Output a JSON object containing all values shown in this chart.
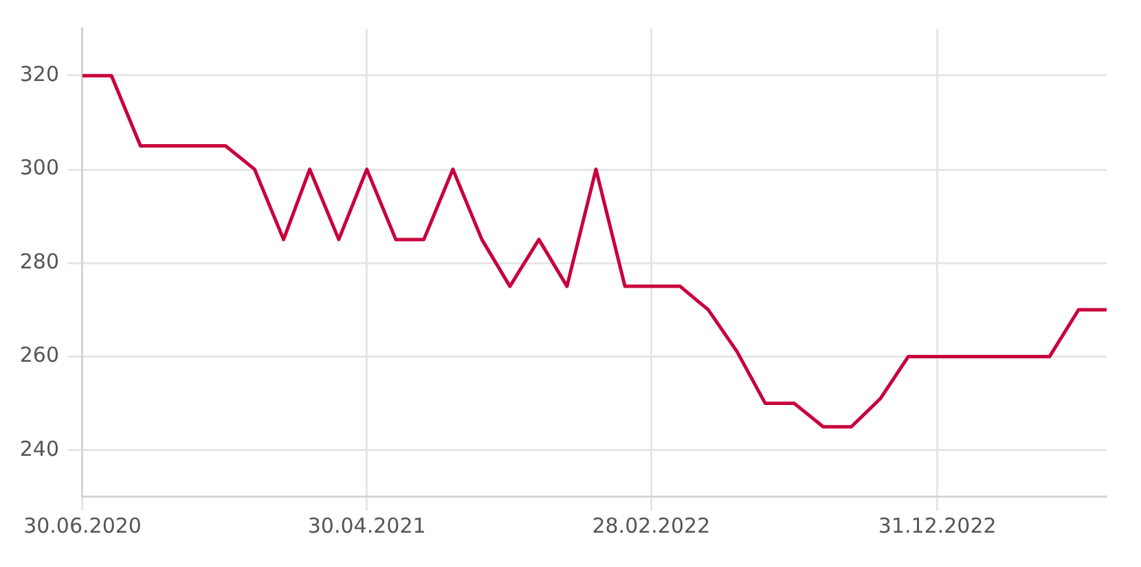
{
  "chart_data": {
    "type": "line",
    "x": [
      "2020-06-30",
      "2020-07-31",
      "2020-08-31",
      "2020-09-30",
      "2020-10-31",
      "2020-11-30",
      "2020-12-31",
      "2021-01-31",
      "2021-02-28",
      "2021-03-31",
      "2021-04-30",
      "2021-05-31",
      "2021-06-30",
      "2021-07-31",
      "2021-08-31",
      "2021-09-30",
      "2021-10-31",
      "2021-11-30",
      "2021-12-31",
      "2022-01-31",
      "2022-02-28",
      "2022-03-31",
      "2022-04-30",
      "2022-05-31",
      "2022-06-30",
      "2022-07-31",
      "2022-08-31",
      "2022-09-30",
      "2022-10-31",
      "2022-11-30",
      "2022-12-31",
      "2023-01-31",
      "2023-02-28",
      "2023-03-31",
      "2023-04-30",
      "2023-05-31",
      "2023-06-30"
    ],
    "values": [
      320,
      320,
      305,
      305,
      305,
      305,
      300,
      285,
      300,
      285,
      300,
      285,
      285,
      300,
      285,
      275,
      285,
      275,
      300,
      275,
      275,
      275,
      270,
      261,
      250,
      250,
      245,
      245,
      251,
      260,
      260,
      260,
      260,
      260,
      260,
      270,
      270
    ],
    "color": "#c8003c",
    "xlim": [
      "2020-06-30",
      "2023-06-30"
    ],
    "xticks": [
      {
        "value": "2020-06-30",
        "label": "30.06.2020"
      },
      {
        "value": "2021-04-30",
        "label": "30.04.2021"
      },
      {
        "value": "2022-02-28",
        "label": "28.02.2022"
      },
      {
        "value": "2022-12-31",
        "label": "31.12.2022"
      }
    ],
    "ylim": [
      230,
      330
    ],
    "yticks": [
      240,
      260,
      280,
      300,
      320
    ],
    "grid": true,
    "marker": "none",
    "line_style": "solid"
  }
}
